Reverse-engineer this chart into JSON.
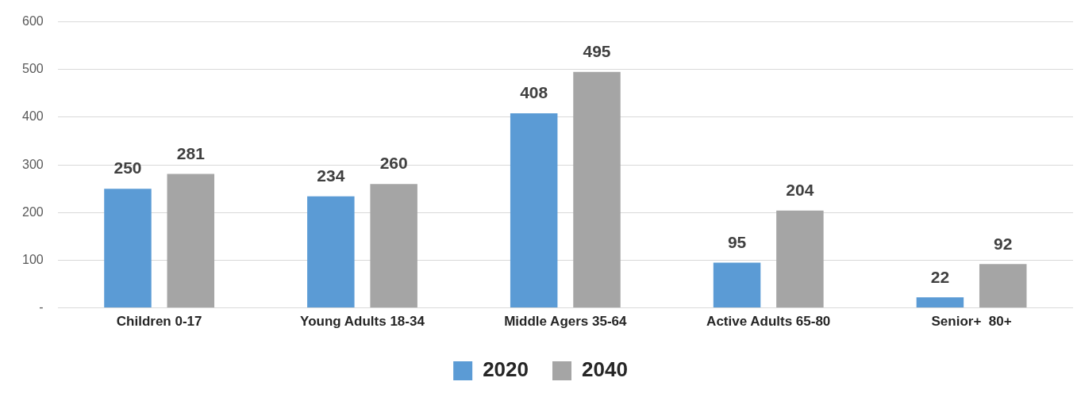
{
  "chart_data": {
    "type": "bar",
    "categories": [
      "Children 0-17",
      "Young Adults 18-34",
      "Middle Agers 35-64",
      "Active Adults 65-80",
      "Senior+  80+"
    ],
    "series": [
      {
        "name": "2020",
        "color": "#5b9bd5",
        "values": [
          250,
          234,
          408,
          95,
          22
        ]
      },
      {
        "name": "2040",
        "color": "#a5a5a5",
        "values": [
          281,
          260,
          495,
          204,
          92
        ]
      }
    ],
    "ylim": [
      0,
      600
    ],
    "yticks": [
      {
        "value": 0,
        "label": "-"
      },
      100,
      200,
      300,
      400,
      500,
      600
    ],
    "grid": "y",
    "legend": "bottom",
    "data_labels": true
  }
}
